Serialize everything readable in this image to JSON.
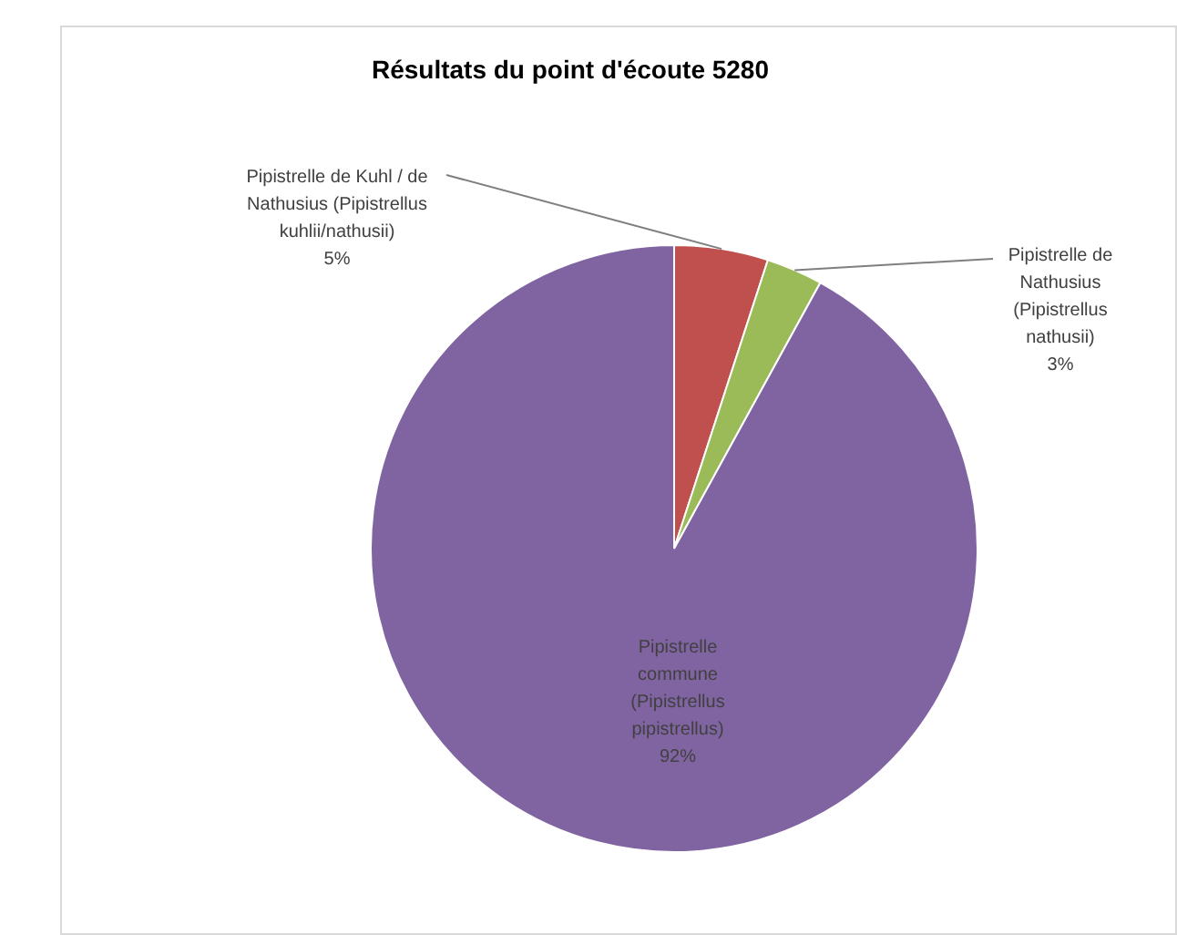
{
  "chart_data": {
    "type": "pie",
    "title": "Résultats du point d'écoute 5280",
    "categories": [
      "Pipistrelle de Kuhl / de Nathusius (Pipistrellus kuhlii/nathusii)",
      "Pipistrelle de Nathusius (Pipistrellus nathusii)",
      "Pipistrelle commune (Pipistrellus pipistrellus)"
    ],
    "values": [
      5,
      3,
      92
    ],
    "value_labels": [
      "5%",
      "3%",
      "92%"
    ],
    "colors": [
      "#c0504d",
      "#9bbb59",
      "#8064a2"
    ],
    "legend": false
  }
}
